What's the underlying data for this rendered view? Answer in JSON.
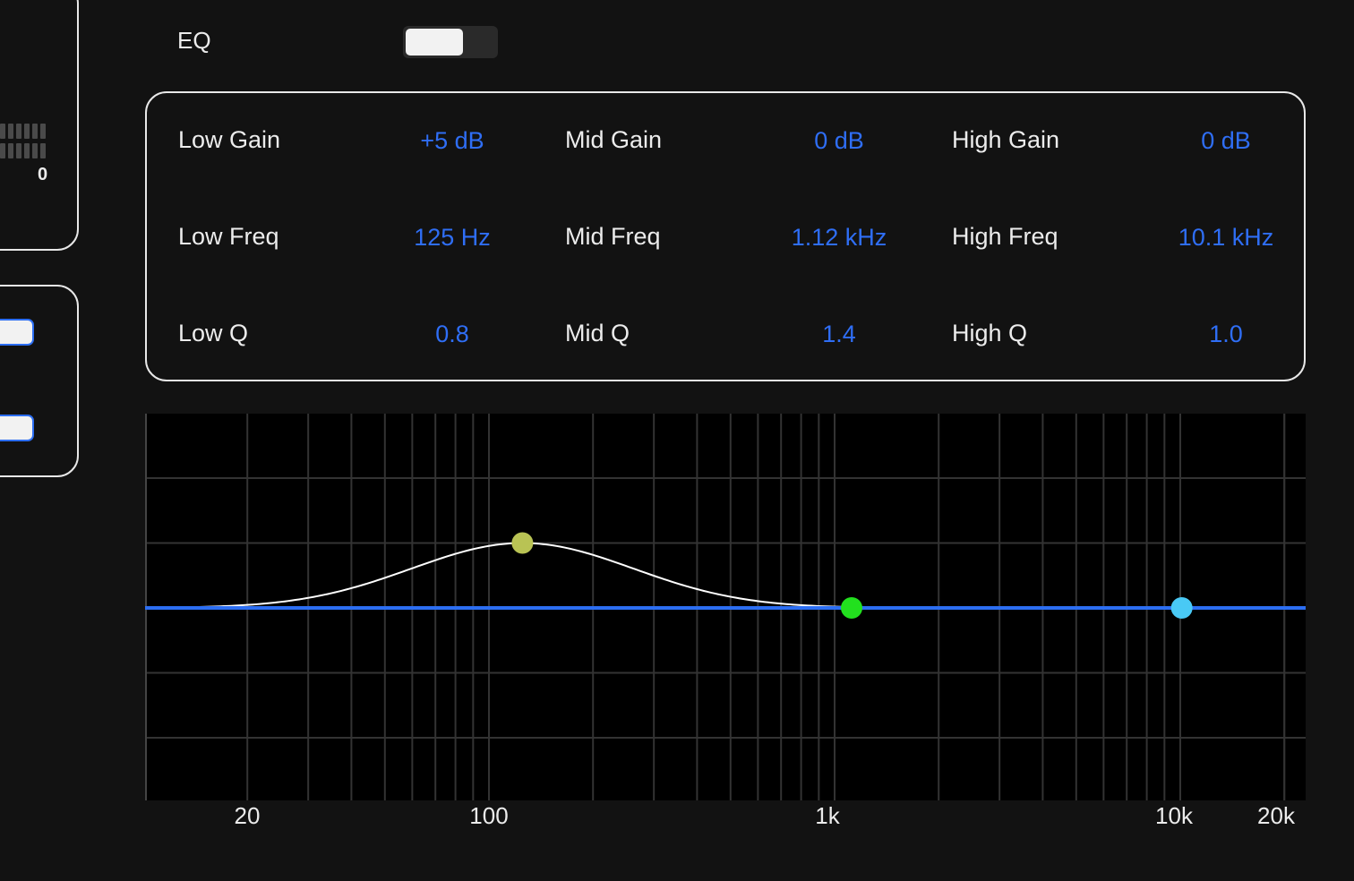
{
  "left": {
    "meter_value": "0"
  },
  "eq": {
    "label": "EQ",
    "enabled": true
  },
  "params": {
    "low_gain_label": "Low Gain",
    "low_gain_value": "+5 dB",
    "mid_gain_label": "Mid Gain",
    "mid_gain_value": "0 dB",
    "high_gain_label": "High Gain",
    "high_gain_value": "0 dB",
    "low_freq_label": "Low Freq",
    "low_freq_value": "125 Hz",
    "mid_freq_label": "Mid Freq",
    "mid_freq_value": "1.12 kHz",
    "high_freq_label": "High Freq",
    "high_freq_value": "10.1 kHz",
    "low_q_label": "Low Q",
    "low_q_value": "0.8",
    "mid_q_label": "Mid Q",
    "mid_q_value": "1.4",
    "high_q_label": "High Q",
    "high_q_value": "1.0"
  },
  "graph": {
    "x_ticks": [
      "20",
      "100",
      "1k",
      "10k",
      "20k"
    ],
    "colors": {
      "response_curve": "#ffffff",
      "flat_line": "#2c6ef2",
      "low_handle": "#b9c354",
      "mid_handle": "#22e01e",
      "high_handle": "#49c9f5"
    },
    "bands": [
      {
        "name": "low",
        "freq_hz": 125,
        "gain_db": 5,
        "q": 0.8
      },
      {
        "name": "mid",
        "freq_hz": 1120,
        "gain_db": 0,
        "q": 1.4
      },
      {
        "name": "high",
        "freq_hz": 10100,
        "gain_db": 0,
        "q": 1.0
      }
    ]
  }
}
